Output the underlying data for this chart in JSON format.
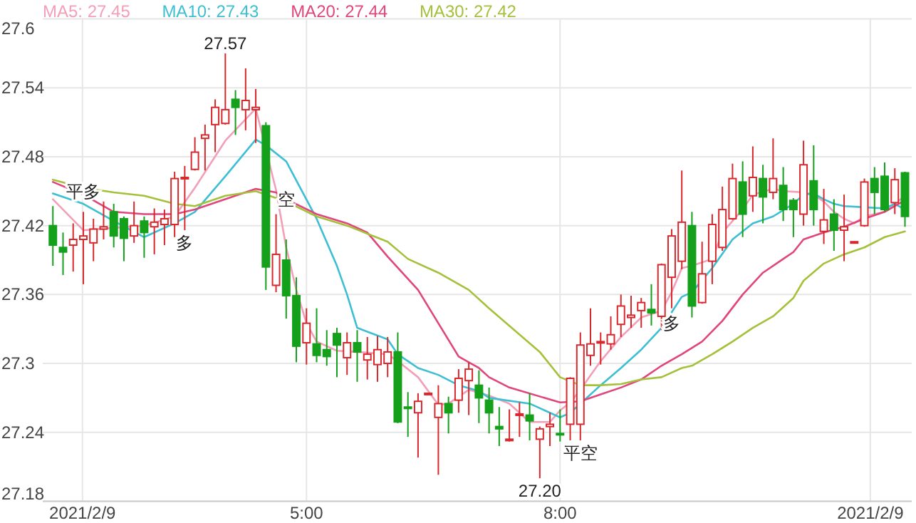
{
  "chart_data": {
    "type": "candlestick",
    "x": [
      2,
      2.12,
      2.24,
      2.36,
      2.48,
      2.6,
      2.72,
      2.84,
      2.96,
      3.08,
      3.2,
      3.32,
      3.44,
      3.56,
      3.68,
      3.8,
      3.92,
      4.04,
      4.16,
      4.28,
      4.4,
      4.52,
      4.64,
      4.76,
      4.88,
      5,
      5.12,
      5.24,
      5.36,
      5.48,
      5.6,
      5.72,
      5.84,
      5.96,
      6.08,
      6.2,
      6.32,
      6.44,
      6.56,
      6.68,
      6.8,
      6.92,
      7.04,
      7.16,
      7.28,
      7.4,
      7.52,
      7.64,
      7.76,
      7.88,
      8,
      8.12,
      8.24,
      8.36,
      8.48,
      8.6,
      8.72,
      8.84,
      8.96,
      9.08,
      9.2,
      9.32,
      9.44,
      9.56,
      9.68,
      9.8,
      9.92,
      10.04,
      10.16,
      10.28,
      10.4,
      10.52,
      10.64,
      10.76,
      10.88,
      11,
      11.12,
      11.24,
      11.36,
      11.48,
      11.6,
      11.72,
      11.84,
      11.96,
      12.08
    ],
    "ohlc": [
      [
        27.42,
        27.437,
        27.385,
        27.403
      ],
      [
        27.401,
        27.414,
        27.377,
        27.397
      ],
      [
        27.403,
        27.422,
        27.38,
        27.408
      ],
      [
        27.408,
        27.432,
        27.369,
        27.411
      ],
      [
        27.405,
        27.426,
        27.389,
        27.417
      ],
      [
        27.417,
        27.441,
        27.408,
        27.419
      ],
      [
        27.432,
        27.439,
        27.401,
        27.411
      ],
      [
        27.426,
        27.428,
        27.389,
        27.409
      ],
      [
        27.411,
        27.441,
        27.405,
        27.42
      ],
      [
        27.424,
        27.428,
        27.392,
        27.414
      ],
      [
        27.419,
        27.435,
        27.395,
        27.423
      ],
      [
        27.421,
        27.434,
        27.403,
        27.426
      ],
      [
        27.421,
        27.467,
        27.41,
        27.461
      ],
      [
        27.461,
        27.472,
        27.416,
        27.462
      ],
      [
        27.469,
        27.497,
        27.468,
        27.484
      ],
      [
        27.496,
        27.508,
        27.468,
        27.499
      ],
      [
        27.508,
        27.53,
        27.484,
        27.523
      ],
      [
        27.509,
        27.57,
        27.508,
        27.521
      ],
      [
        27.53,
        27.538,
        27.499,
        27.523
      ],
      [
        27.521,
        27.557,
        27.503,
        27.529
      ],
      [
        27.521,
        27.539,
        27.492,
        27.523
      ],
      [
        27.507,
        27.51,
        27.364,
        27.384
      ],
      [
        27.368,
        27.43,
        27.362,
        27.395
      ],
      [
        27.39,
        27.408,
        27.339,
        27.359
      ],
      [
        27.359,
        27.375,
        27.301,
        27.315
      ],
      [
        27.318,
        27.348,
        27.299,
        27.335
      ],
      [
        27.317,
        27.348,
        27.301,
        27.307
      ],
      [
        27.312,
        27.329,
        27.298,
        27.306
      ],
      [
        27.326,
        27.331,
        27.288,
        27.316
      ],
      [
        27.305,
        27.327,
        27.29,
        27.318
      ],
      [
        27.318,
        27.329,
        27.284,
        27.31
      ],
      [
        27.303,
        27.323,
        27.286,
        27.308
      ],
      [
        27.299,
        27.324,
        27.284,
        27.312
      ],
      [
        27.3,
        27.323,
        27.288,
        27.31
      ],
      [
        27.31,
        27.327,
        27.248,
        27.249
      ],
      [
        27.262,
        27.275,
        27.236,
        27.261
      ],
      [
        27.257,
        27.274,
        27.218,
        27.267
      ],
      [
        27.273,
        27.274,
        27.273,
        27.274
      ],
      [
        27.253,
        27.281,
        27.203,
        27.265
      ],
      [
        27.265,
        27.271,
        27.239,
        27.257
      ],
      [
        27.268,
        27.295,
        27.257,
        27.287
      ],
      [
        27.285,
        27.301,
        27.255,
        27.295
      ],
      [
        27.281,
        27.294,
        27.248,
        27.27
      ],
      [
        27.268,
        27.279,
        27.239,
        27.257
      ],
      [
        27.245,
        27.262,
        27.228,
        27.243
      ],
      [
        27.233,
        27.26,
        27.232,
        27.234
      ],
      [
        27.255,
        27.266,
        27.236,
        27.256
      ],
      [
        27.255,
        27.274,
        27.233,
        27.25
      ],
      [
        27.234,
        27.245,
        27.2,
        27.243
      ],
      [
        27.245,
        27.257,
        27.228,
        27.247
      ],
      [
        27.239,
        27.26,
        27.232,
        27.238
      ],
      [
        27.247,
        27.288,
        27.233,
        27.287
      ],
      [
        27.247,
        27.327,
        27.233,
        27.316
      ],
      [
        27.307,
        27.348,
        27.298,
        27.317
      ],
      [
        27.318,
        27.327,
        27.299,
        27.319
      ],
      [
        27.317,
        27.341,
        27.312,
        27.325
      ],
      [
        27.334,
        27.36,
        27.323,
        27.35
      ],
      [
        27.34,
        27.359,
        27.331,
        27.342
      ],
      [
        27.346,
        27.357,
        27.331,
        27.353
      ],
      [
        27.347,
        27.369,
        27.333,
        27.344
      ],
      [
        27.341,
        27.387,
        27.329,
        27.386
      ],
      [
        27.375,
        27.417,
        27.348,
        27.411
      ],
      [
        27.389,
        27.468,
        27.382,
        27.423
      ],
      [
        27.42,
        27.432,
        27.34,
        27.35
      ],
      [
        27.353,
        27.406,
        27.352,
        27.378
      ],
      [
        27.389,
        27.43,
        27.369,
        27.421
      ],
      [
        27.401,
        27.454,
        27.398,
        27.434
      ],
      [
        27.426,
        27.474,
        27.425,
        27.461
      ],
      [
        27.458,
        27.476,
        27.41,
        27.43
      ],
      [
        27.446,
        27.489,
        27.432,
        27.462
      ],
      [
        27.461,
        27.473,
        27.422,
        27.445
      ],
      [
        27.449,
        27.496,
        27.443,
        27.461
      ],
      [
        27.455,
        27.471,
        27.424,
        27.434
      ],
      [
        27.442,
        27.444,
        27.41,
        27.434
      ],
      [
        27.43,
        27.494,
        27.42,
        27.473
      ],
      [
        27.459,
        27.49,
        27.42,
        27.434
      ],
      [
        27.415,
        27.452,
        27.404,
        27.425
      ],
      [
        27.43,
        27.443,
        27.398,
        27.416
      ],
      [
        27.416,
        27.447,
        27.389,
        27.419
      ],
      [
        27.405,
        27.406,
        27.405,
        27.406
      ],
      [
        27.42,
        27.461,
        27.419,
        27.458
      ],
      [
        27.461,
        27.471,
        27.43,
        27.449
      ],
      [
        27.463,
        27.475,
        27.432,
        27.434
      ],
      [
        27.44,
        27.47,
        27.43,
        27.46
      ],
      [
        27.466,
        27.467,
        27.419,
        27.428
      ]
    ],
    "series": [
      {
        "name": "MA5: 27.45",
        "type": "line",
        "color": "#f29fb7",
        "x": [
          2,
          2.36,
          2.72,
          3.08,
          3.44,
          3.68,
          4.04,
          4.4,
          4.64,
          4.76,
          4.88,
          5,
          5.12,
          5.36,
          5.6,
          5.96,
          6.08,
          6.32,
          6.56,
          6.68,
          6.92,
          7.16,
          7.4,
          7.64,
          7.88,
          8,
          8.12,
          8.24,
          8.48,
          8.72,
          8.96,
          9.2,
          9.32,
          9.44,
          9.56,
          9.8,
          9.92,
          10.16,
          10.28,
          10.52,
          10.64,
          10.88,
          11,
          11.12,
          11.24,
          11.36,
          11.48,
          11.6,
          11.84,
          12.08
        ],
        "values": [
          27.443,
          27.416,
          27.418,
          27.42,
          27.428,
          27.453,
          27.494,
          27.522,
          27.451,
          27.401,
          27.364,
          27.335,
          27.319,
          27.311,
          27.31,
          27.308,
          27.302,
          27.288,
          27.264,
          27.265,
          27.277,
          27.272,
          27.265,
          27.249,
          27.249,
          27.259,
          27.266,
          27.277,
          27.302,
          27.323,
          27.34,
          27.346,
          27.362,
          27.383,
          27.385,
          27.391,
          27.414,
          27.434,
          27.447,
          27.452,
          27.45,
          27.449,
          27.447,
          27.441,
          27.432,
          27.426,
          27.422,
          27.428,
          27.432,
          27.446
        ]
      },
      {
        "name": "MA10: 27.43",
        "type": "line",
        "color": "#3dbfd3",
        "x": [
          2,
          2.36,
          2.72,
          3.08,
          3.44,
          3.68,
          4.04,
          4.4,
          4.52,
          4.76,
          5.12,
          5.36,
          5.48,
          5.6,
          5.96,
          6.08,
          6.32,
          6.56,
          6.8,
          7.04,
          7.16,
          7.64,
          8,
          8.12,
          8.24,
          8.48,
          8.72,
          8.96,
          9.2,
          9.44,
          9.56,
          9.8,
          10.04,
          10.28,
          10.52,
          10.76,
          10.88,
          11,
          11.12,
          11.24,
          11.36,
          11.6,
          11.84,
          11.96,
          12.08
        ],
        "values": [
          27.448,
          27.439,
          27.424,
          27.41,
          27.422,
          27.432,
          27.463,
          27.495,
          27.49,
          27.476,
          27.426,
          27.385,
          27.36,
          27.331,
          27.321,
          27.308,
          27.296,
          27.29,
          27.281,
          27.276,
          27.27,
          27.265,
          27.253,
          27.257,
          27.265,
          27.281,
          27.296,
          27.312,
          27.331,
          27.358,
          27.362,
          27.383,
          27.408,
          27.422,
          27.428,
          27.439,
          27.447,
          27.448,
          27.443,
          27.439,
          27.437,
          27.436,
          27.435,
          27.439,
          27.434
        ]
      },
      {
        "name": "MA20: 27.44",
        "type": "line",
        "color": "#e0457c",
        "x": [
          2,
          2.36,
          2.72,
          3.08,
          3.44,
          3.68,
          4.04,
          4.4,
          4.64,
          4.76,
          5.12,
          5.48,
          5.72,
          5.96,
          6.32,
          6.56,
          6.8,
          7.04,
          7.16,
          7.4,
          8,
          8.24,
          8.48,
          8.72,
          8.96,
          9.2,
          9.44,
          9.68,
          9.92,
          10.16,
          10.4,
          10.64,
          10.76,
          10.88,
          11.12,
          11.36,
          11.6,
          11.84,
          12.08
        ],
        "values": [
          27.458,
          27.447,
          27.432,
          27.43,
          27.43,
          27.434,
          27.443,
          27.452,
          27.449,
          27.443,
          27.43,
          27.422,
          27.414,
          27.393,
          27.364,
          27.335,
          27.306,
          27.296,
          27.288,
          27.279,
          27.266,
          27.267,
          27.273,
          27.279,
          27.286,
          27.298,
          27.308,
          27.319,
          27.337,
          27.36,
          27.379,
          27.391,
          27.397,
          27.408,
          27.414,
          27.419,
          27.426,
          27.432,
          27.442
        ]
      },
      {
        "name": "MA30: 27.42",
        "type": "line",
        "color": "#a5c03b",
        "x": [
          2,
          2.36,
          2.72,
          3.08,
          3.44,
          3.68,
          4.04,
          4.4,
          4.76,
          5.12,
          5.48,
          5.96,
          6.2,
          6.56,
          6.92,
          7.16,
          7.76,
          8,
          8.24,
          8.48,
          8.72,
          8.96,
          9.2,
          9.44,
          9.56,
          9.8,
          10.04,
          10.28,
          10.52,
          10.76,
          10.88,
          11.12,
          11.36,
          11.6,
          11.84,
          12.08
        ],
        "values": [
          27.46,
          27.453,
          27.449,
          27.446,
          27.439,
          27.437,
          27.446,
          27.45,
          27.441,
          27.428,
          27.42,
          27.406,
          27.391,
          27.379,
          27.364,
          27.348,
          27.31,
          27.288,
          27.281,
          27.281,
          27.282,
          27.286,
          27.288,
          27.296,
          27.298,
          27.308,
          27.319,
          27.331,
          27.341,
          27.357,
          27.372,
          27.387,
          27.395,
          27.401,
          27.41,
          27.415
        ]
      }
    ],
    "annotations": [
      {
        "text": "27.57",
        "x": 4.04,
        "y": 27.57
      },
      {
        "text": "27.20",
        "x": 7.76,
        "y": 27.2
      },
      {
        "text": "平多",
        "x": 2.36,
        "y": 27.441
      },
      {
        "text": "多",
        "x": 3.56,
        "y": 27.416
      },
      {
        "text": "空",
        "x": 4.76,
        "y": 27.434
      },
      {
        "text": "平空",
        "x": 8.24,
        "y": 27.233
      },
      {
        "text": "多",
        "x": 9.32,
        "y": 27.346
      }
    ],
    "xlim": [
      1.88,
      12.16
    ],
    "xticks": [
      {
        "value": 2.35,
        "label": "2021/2/9"
      },
      {
        "value": 5,
        "label": "5:00"
      },
      {
        "value": 8,
        "label": "8:00"
      },
      {
        "value": 11.67,
        "label": "2021/2/9"
      }
    ],
    "ylim": [
      27.18,
      27.6
    ],
    "yticks": [
      27.18,
      27.24,
      27.3,
      27.36,
      27.42,
      27.48,
      27.54,
      27.6
    ],
    "grid": true,
    "legend": "top left"
  }
}
